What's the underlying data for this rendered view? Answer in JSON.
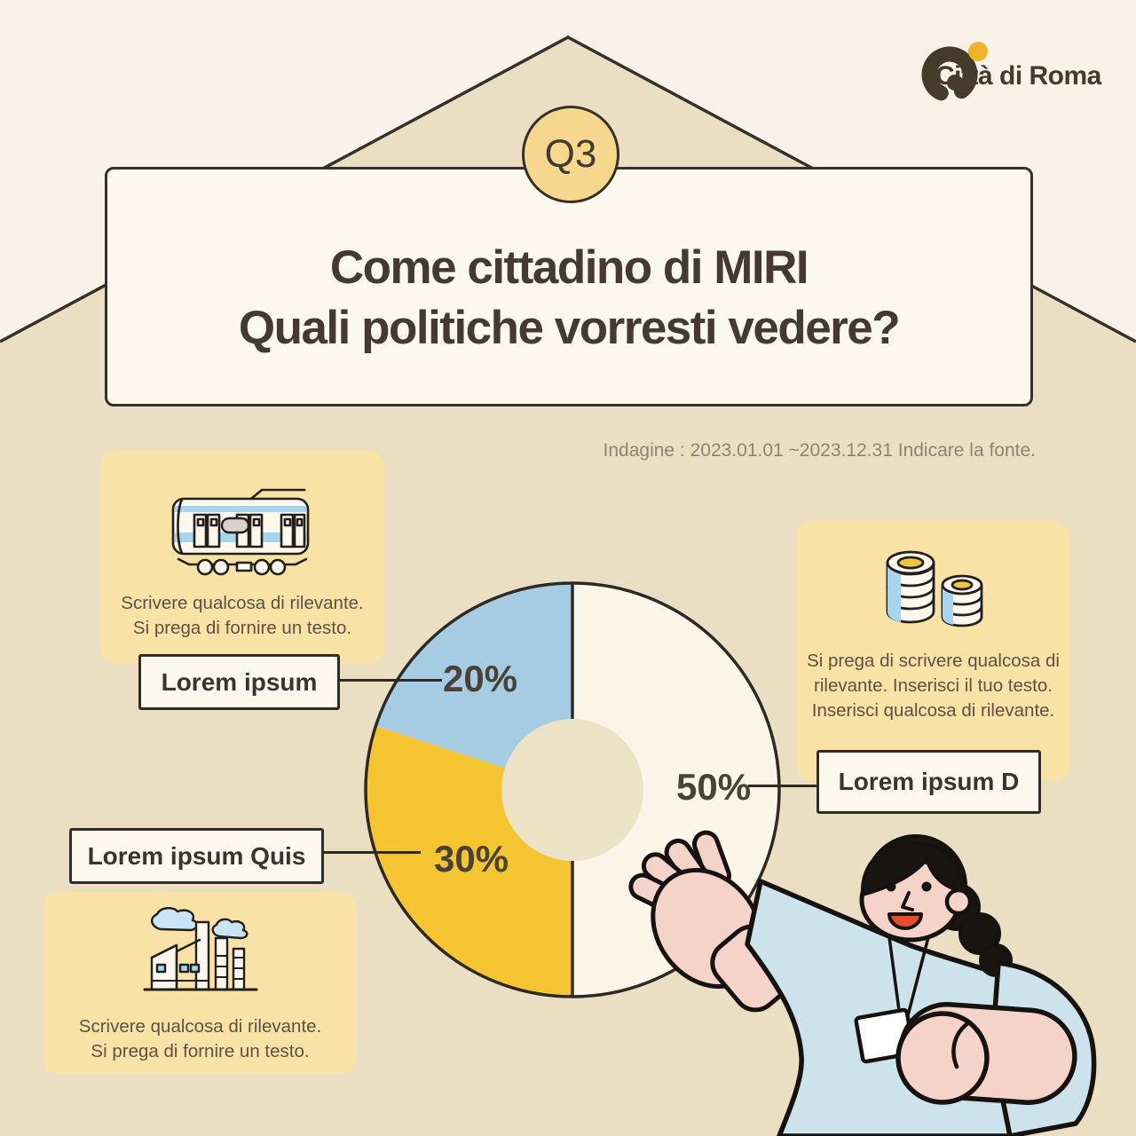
{
  "logo": {
    "text": "Città di Roma",
    "mark_color": "#463a2a",
    "dot_color": "#f0b429"
  },
  "badge": {
    "label": "Q3"
  },
  "title": {
    "line1": "Come cittadino di MIRI",
    "line2": "Quali politiche vorresti vedere?"
  },
  "survey_note": "Indagine : 2023.01.01 ~2023.12.31 Indicare la fonte.",
  "panels": {
    "transport": {
      "icon": "train-icon",
      "lines": [
        "Scrivere qualcosa di rilevante.",
        "Si prega di fornire un testo."
      ]
    },
    "economy": {
      "icon": "coins-icon",
      "lines": [
        "Si prega di scrivere qualcosa di",
        "rilevante. Inserisci il tuo testo.",
        "Inserisci qualcosa di rilevante."
      ]
    },
    "industry": {
      "icon": "factory-icon",
      "lines": [
        "Scrivere qualcosa di rilevante.",
        "Si prega di fornire un testo."
      ]
    }
  },
  "chart_data": {
    "type": "pie",
    "donut": true,
    "title": "",
    "start_angle_deg": 0,
    "direction": "clockwise",
    "hole_color": "#ece3c7",
    "outline_color": "#2e2924",
    "segments": [
      {
        "label": "Lorem ipsum D",
        "value": 50,
        "display": "50%",
        "color": "#fbf5e8"
      },
      {
        "label": "Lorem ipsum Quis",
        "value": 30,
        "display": "30%",
        "color": "#f5c531"
      },
      {
        "label": "Lorem ipsum",
        "value": 20,
        "display": "20%",
        "color": "#a5cce2"
      }
    ]
  },
  "colors": {
    "background": "#f9f2e8",
    "house": "#ebdfc3",
    "outline": "#36302a",
    "panel": "#f8e2a5",
    "card": "#fdf8ee",
    "title_text": "#453931",
    "skin": "#f5d3c8",
    "shirt": "#cce3eb",
    "hair": "#181512",
    "mouth": "#e74c2d"
  }
}
